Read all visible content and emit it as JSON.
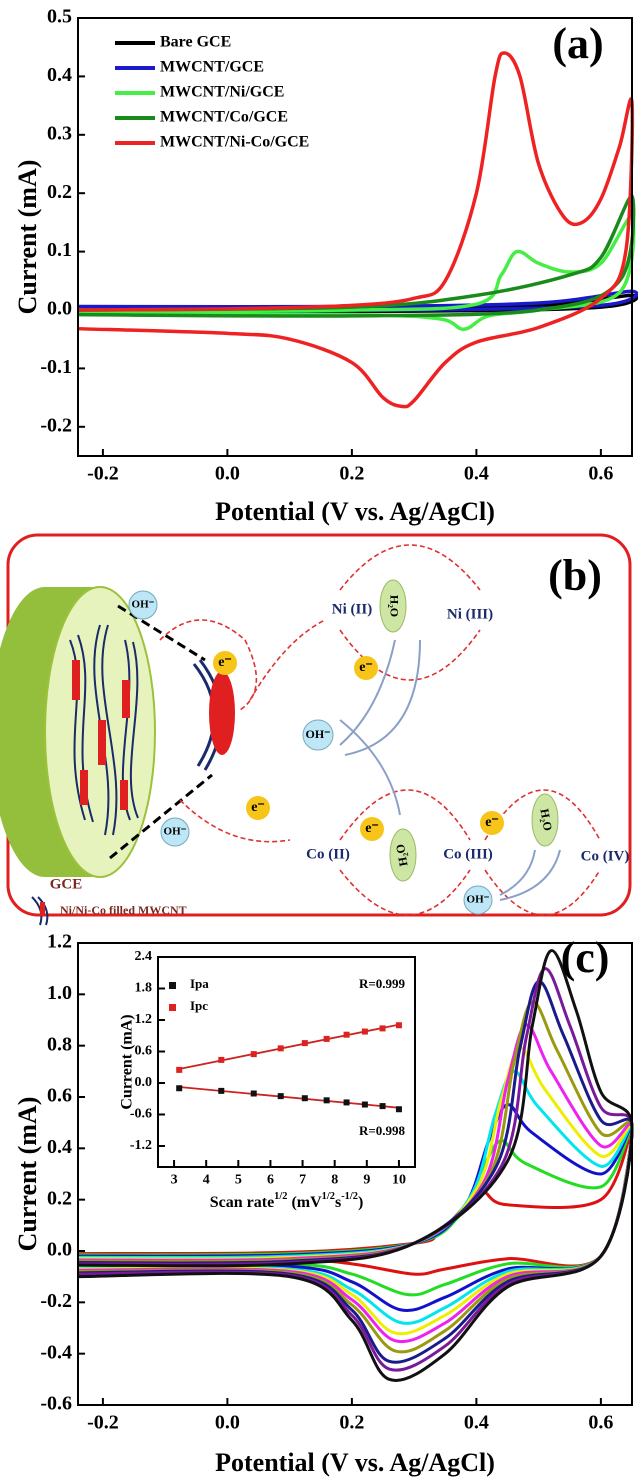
{
  "chart_data": [
    {
      "type": "line",
      "panel_label": "(a)",
      "xlabel": "Potential (V vs. Ag/AgCl)",
      "ylabel": "Current (mA)",
      "xlim": [
        -0.24,
        0.65
      ],
      "ylim": [
        -0.25,
        0.5
      ],
      "xticks": [
        -0.2,
        {
          "value": 0,
          "label": "0.0"
        },
        0.2,
        0.4,
        0.6
      ],
      "yticks": [
        -0.2,
        -0.1,
        {
          "value": 0,
          "label": "0.0"
        },
        0.1,
        0.2,
        0.3,
        0.4,
        0.5
      ],
      "legend": "upper left",
      "series": [
        {
          "name": "Bare GCE",
          "color": "#000000",
          "x": [
            -0.24,
            0.2,
            0.5,
            0.65,
            0.6,
            0.3,
            -0.24
          ],
          "values": [
            0.0,
            0.002,
            0.008,
            0.025,
            0.005,
            -0.002,
            -0.002
          ]
        },
        {
          "name": "MWCNT/GCE",
          "color": "#1a1acc",
          "x": [
            -0.24,
            0.2,
            0.5,
            0.65,
            0.6,
            0.3,
            -0.24
          ],
          "values": [
            0.006,
            0.006,
            0.012,
            0.032,
            0.008,
            0.0,
            -0.003
          ]
        },
        {
          "name": "MWCNT/Ni/GCE",
          "color": "#44ee44",
          "x": [
            -0.24,
            0.2,
            0.4,
            0.44,
            0.465,
            0.5,
            0.55,
            0.6,
            0.65,
            0.63,
            0.5,
            0.42,
            0.38,
            0.34,
            0.2,
            -0.24
          ],
          "values": [
            0.0,
            0.0,
            0.01,
            0.06,
            0.1,
            0.08,
            0.065,
            0.08,
            0.16,
            0.03,
            0.0,
            -0.01,
            -0.033,
            -0.015,
            -0.008,
            -0.005
          ]
        },
        {
          "name": "MWCNT/Co/GCE",
          "color": "#1a8a1a",
          "x": [
            -0.24,
            0.2,
            0.4,
            0.55,
            0.6,
            0.65,
            0.63,
            0.5,
            0.2,
            -0.24
          ],
          "values": [
            0.0,
            0.005,
            0.025,
            0.06,
            0.09,
            0.195,
            0.05,
            0.0,
            -0.01,
            -0.008
          ]
        },
        {
          "name": "MWCNT/Ni-Co/GCE",
          "color": "#ee2222",
          "x": [
            -0.24,
            0.0,
            0.2,
            0.3,
            0.35,
            0.4,
            0.43,
            0.445,
            0.47,
            0.5,
            0.54,
            0.57,
            0.6,
            0.63,
            0.65,
            0.64,
            0.6,
            0.5,
            0.4,
            0.35,
            0.3,
            0.28,
            0.25,
            0.2,
            0.1,
            0.0,
            -0.24
          ],
          "values": [
            0.0,
            0.002,
            0.008,
            0.02,
            0.05,
            0.2,
            0.4,
            0.44,
            0.4,
            0.25,
            0.16,
            0.15,
            0.19,
            0.28,
            0.355,
            0.1,
            0.02,
            -0.03,
            -0.055,
            -0.09,
            -0.155,
            -0.165,
            -0.15,
            -0.09,
            -0.05,
            -0.04,
            -0.032
          ]
        }
      ]
    },
    {
      "type": "line",
      "panel_label": "(c)",
      "xlabel": "Potential (V vs. Ag/AgCl)",
      "ylabel": "Current (mA)",
      "xlim": [
        -0.24,
        0.65
      ],
      "ylim": [
        -0.6,
        1.2
      ],
      "xticks": [
        -0.2,
        {
          "value": 0,
          "label": "0.0"
        },
        0.2,
        0.4,
        0.6
      ],
      "yticks": [
        -0.6,
        -0.4,
        -0.2,
        {
          "value": 0,
          "label": "0.0"
        },
        0.2,
        0.4,
        0.6,
        0.8,
        {
          "value": 1,
          "label": "1.0"
        },
        1.2
      ],
      "series": [
        {
          "color": "#dd1111",
          "x": [
            -0.24,
            0.1,
            0.3,
            0.34,
            0.38,
            0.41,
            0.45,
            0.6,
            0.65,
            0.6,
            0.45,
            0.35,
            0.3,
            0.2,
            0.1,
            -0.24
          ],
          "values": [
            -0.01,
            -0.005,
            0.03,
            0.07,
            0.17,
            0.23,
            0.18,
            0.2,
            0.48,
            -0.02,
            -0.03,
            -0.07,
            -0.09,
            -0.05,
            -0.035,
            -0.03
          ]
        },
        {
          "color": "#22dd22",
          "x": [
            -0.24,
            0.1,
            0.3,
            0.37,
            0.41,
            0.44,
            0.48,
            0.6,
            0.65,
            0.6,
            0.45,
            0.35,
            0.29,
            0.2,
            0.1,
            -0.24
          ],
          "values": [
            -0.015,
            -0.01,
            0.03,
            0.13,
            0.32,
            0.43,
            0.34,
            0.25,
            0.48,
            -0.02,
            -0.05,
            -0.13,
            -0.17,
            -0.09,
            -0.05,
            -0.045
          ]
        },
        {
          "color": "#1111cc",
          "x": [
            -0.24,
            0.1,
            0.3,
            0.38,
            0.42,
            0.45,
            0.49,
            0.6,
            0.65,
            0.6,
            0.45,
            0.35,
            0.28,
            0.2,
            0.1,
            -0.24
          ],
          "values": [
            -0.02,
            -0.015,
            0.03,
            0.17,
            0.43,
            0.57,
            0.46,
            0.3,
            0.48,
            -0.02,
            -0.07,
            -0.18,
            -0.23,
            -0.12,
            -0.06,
            -0.055
          ]
        },
        {
          "color": "#00e5ee",
          "x": [
            -0.24,
            0.1,
            0.3,
            0.39,
            0.43,
            0.46,
            0.5,
            0.6,
            0.65,
            0.6,
            0.45,
            0.35,
            0.28,
            0.2,
            0.1,
            -0.24
          ],
          "values": [
            -0.025,
            -0.02,
            0.03,
            0.21,
            0.53,
            0.7,
            0.56,
            0.33,
            0.48,
            -0.02,
            -0.08,
            -0.22,
            -0.28,
            -0.15,
            -0.07,
            -0.065
          ]
        },
        {
          "color": "#eeee00",
          "x": [
            -0.24,
            0.1,
            0.3,
            0.4,
            0.44,
            0.47,
            0.51,
            0.6,
            0.65,
            0.6,
            0.45,
            0.35,
            0.27,
            0.2,
            0.1,
            -0.24
          ],
          "values": [
            -0.03,
            -0.025,
            0.03,
            0.24,
            0.59,
            0.79,
            0.63,
            0.37,
            0.48,
            -0.02,
            -0.09,
            -0.25,
            -0.32,
            -0.17,
            -0.075,
            -0.07
          ]
        },
        {
          "color": "#ee22ee",
          "x": [
            -0.24,
            0.1,
            0.3,
            0.41,
            0.45,
            0.48,
            0.52,
            0.6,
            0.65,
            0.6,
            0.45,
            0.35,
            0.27,
            0.2,
            0.1,
            -0.24
          ],
          "values": [
            -0.035,
            -0.03,
            0.03,
            0.26,
            0.66,
            0.88,
            0.7,
            0.41,
            0.48,
            -0.02,
            -0.1,
            -0.28,
            -0.35,
            -0.19,
            -0.08,
            -0.075
          ]
        },
        {
          "color": "#9a9a10",
          "x": [
            -0.24,
            0.1,
            0.3,
            0.42,
            0.46,
            0.49,
            0.53,
            0.6,
            0.65,
            0.6,
            0.45,
            0.35,
            0.27,
            0.2,
            0.1,
            -0.24
          ],
          "values": [
            -0.04,
            -0.035,
            0.03,
            0.29,
            0.73,
            0.97,
            0.78,
            0.46,
            0.48,
            -0.02,
            -0.11,
            -0.31,
            -0.39,
            -0.21,
            -0.085,
            -0.08
          ]
        },
        {
          "color": "#1a1a8a",
          "x": [
            -0.24,
            0.1,
            0.3,
            0.43,
            0.47,
            0.5,
            0.54,
            0.6,
            0.65,
            0.6,
            0.45,
            0.35,
            0.26,
            0.2,
            0.1,
            -0.24
          ],
          "values": [
            -0.045,
            -0.04,
            0.03,
            0.32,
            0.79,
            1.05,
            0.84,
            0.51,
            0.48,
            -0.02,
            -0.12,
            -0.34,
            -0.43,
            -0.23,
            -0.09,
            -0.085
          ]
        },
        {
          "color": "#7a1a9a",
          "x": [
            -0.24,
            0.1,
            0.3,
            0.44,
            0.48,
            0.51,
            0.55,
            0.6,
            0.65,
            0.6,
            0.45,
            0.35,
            0.26,
            0.2,
            0.1,
            -0.24
          ],
          "values": [
            -0.05,
            -0.045,
            0.03,
            0.33,
            0.83,
            1.1,
            0.88,
            0.56,
            0.48,
            -0.02,
            -0.13,
            -0.37,
            -0.46,
            -0.25,
            -0.095,
            -0.09
          ]
        },
        {
          "color": "#111111",
          "x": [
            -0.24,
            0.1,
            0.3,
            0.45,
            0.49,
            0.52,
            0.56,
            0.6,
            0.65,
            0.6,
            0.45,
            0.35,
            0.26,
            0.2,
            0.1,
            -0.24
          ],
          "values": [
            -0.055,
            -0.05,
            0.03,
            0.35,
            0.88,
            1.17,
            0.94,
            0.62,
            0.48,
            -0.02,
            -0.14,
            -0.4,
            -0.5,
            -0.27,
            -0.1,
            -0.1
          ]
        }
      ]
    },
    {
      "type": "scatter",
      "ylabel": "Current (mA)",
      "xlabel": [
        "Scan rate",
        "1/2",
        " (mV",
        "1/2",
        "s",
        "-1/2",
        ")"
      ],
      "xlim": [
        2.5,
        10.5
      ],
      "ylim": [
        -1.6,
        2.4
      ],
      "xticks": [
        3,
        4,
        5,
        6,
        7,
        8,
        9,
        10
      ],
      "yticks": [
        -1.2,
        -0.6,
        {
          "value": 0,
          "label": "0.0"
        },
        0.6,
        1.2,
        1.8,
        2.4
      ],
      "legend": "upper left",
      "fit": true,
      "annotations": [
        "R=0.999",
        "R=0.998"
      ],
      "x": [
        3.16,
        4.47,
        5.48,
        6.32,
        7.07,
        7.75,
        8.37,
        8.94,
        9.49,
        10
      ],
      "series": [
        {
          "name": "Ipa",
          "color": "#111111",
          "values": [
            -0.1,
            -0.15,
            -0.2,
            -0.25,
            -0.29,
            -0.33,
            -0.37,
            -0.41,
            -0.44,
            -0.5
          ]
        },
        {
          "name": "Ipc",
          "color": "#dd2222",
          "values": [
            0.25,
            0.44,
            0.55,
            0.66,
            0.76,
            0.84,
            0.92,
            0.98,
            1.04,
            1.1
          ]
        }
      ]
    }
  ],
  "diagram": {
    "label": "(b)",
    "oh": [
      "OH⁻",
      "OH⁻",
      "OH⁻",
      "OH⁻"
    ],
    "electrons": [
      "e⁻",
      "e⁻",
      "e⁻",
      "e⁻",
      "e⁻"
    ],
    "species": [
      "Ni (II)",
      "Ni (III)",
      "Co (II)",
      "Co (III)",
      "Co (IV)"
    ],
    "water": [
      "H₂O",
      "H₂O",
      "H₂O"
    ],
    "electrode": "GCE",
    "legend": "Ni/Ni-Co filled MWCNT"
  }
}
